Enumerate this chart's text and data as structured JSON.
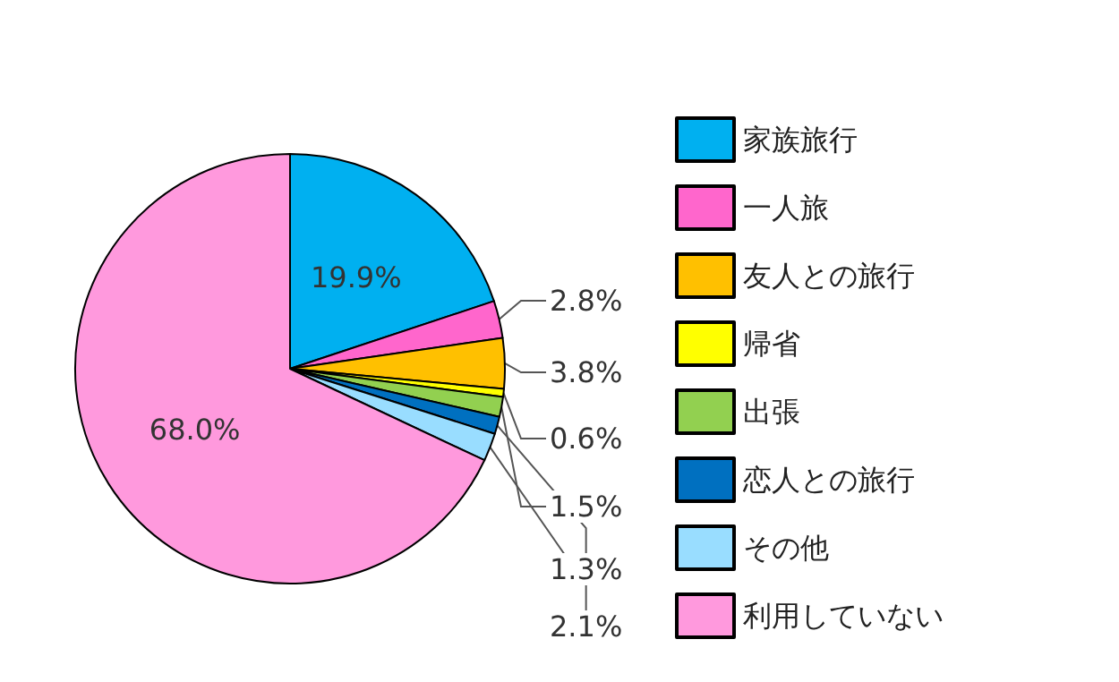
{
  "chart_data": {
    "type": "pie",
    "categories": [
      "家族旅行",
      "一人旅",
      "友人との旅行",
      "帰省",
      "出張",
      "恋人との旅行",
      "その他",
      "利用していない"
    ],
    "values": [
      19.9,
      2.8,
      3.8,
      0.6,
      1.5,
      1.3,
      2.1,
      68.0
    ],
    "value_labels": [
      "19.9%",
      "2.8%",
      "3.8%",
      "0.6%",
      "1.5%",
      "1.3%",
      "2.1%",
      "68.0%"
    ],
    "colors": [
      "#00b0f0",
      "#ff66cc",
      "#ffc000",
      "#ffff00",
      "#92d050",
      "#0070c0",
      "#99ddff",
      "#ff99dd"
    ],
    "legend": "right"
  }
}
